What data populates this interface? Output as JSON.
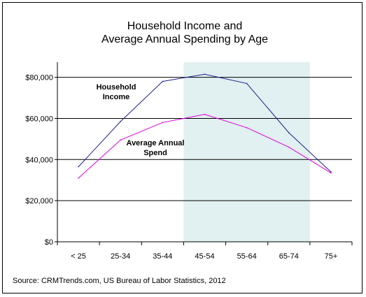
{
  "chart_data": {
    "type": "line",
    "title_lines": [
      "Household Income and",
      "Average Annual Spending by Age"
    ],
    "categories": [
      "< 25",
      "25-34",
      "35-44",
      "45-54",
      "55-64",
      "65-74",
      "75+"
    ],
    "series": [
      {
        "label": [
          "Household",
          "Income"
        ],
        "color": "#1f1f8f",
        "values": [
          36500,
          58500,
          78000,
          81500,
          77000,
          53000,
          34000
        ]
      },
      {
        "label": [
          "Average Annual",
          "Spend"
        ],
        "color": "#e000e0",
        "values": [
          31000,
          49500,
          58000,
          62000,
          55500,
          46000,
          33500
        ]
      }
    ],
    "y_ticks": [
      "$0",
      "$20,000",
      "$40,000",
      "$60,000",
      "$80,000"
    ],
    "ylim": [
      0,
      87000
    ],
    "gridlines": true,
    "highlight_band": {
      "from_category": "45-54",
      "to_category": "65-74",
      "color": "#e1f0f0"
    },
    "source": "Source: CRMTrends.com, US Bureau of Labor Statistics, 2012"
  }
}
